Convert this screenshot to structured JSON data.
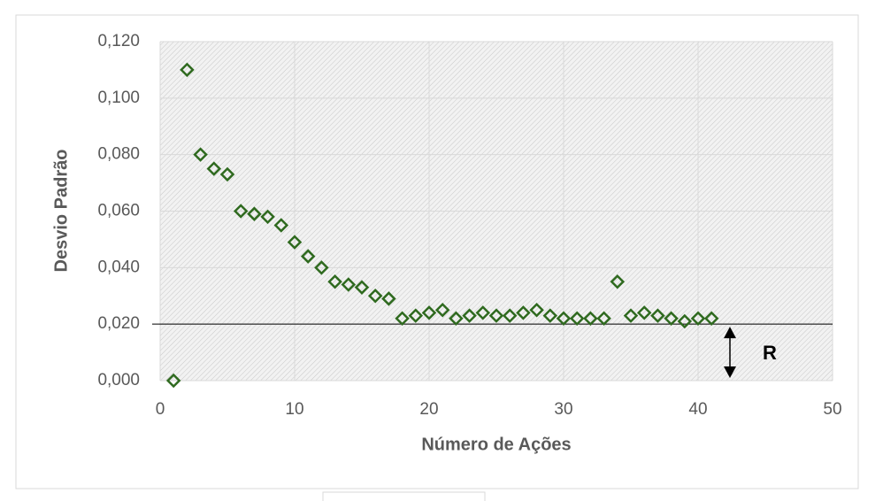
{
  "chart_data": {
    "type": "scatter",
    "x_label": "Número de Ações",
    "y_label": "Desvio Padrão",
    "x": [
      1,
      2,
      3,
      4,
      5,
      6,
      7,
      8,
      9,
      10,
      11,
      12,
      13,
      14,
      15,
      16,
      17,
      18,
      19,
      20,
      21,
      22,
      23,
      24,
      25,
      26,
      27,
      28,
      29,
      30,
      31,
      32,
      33,
      34,
      35,
      36,
      37,
      38,
      39,
      40,
      41
    ],
    "values": [
      0.0,
      0.11,
      0.08,
      0.075,
      0.073,
      0.06,
      0.059,
      0.058,
      0.055,
      0.049,
      0.044,
      0.04,
      0.035,
      0.034,
      0.033,
      0.03,
      0.029,
      0.022,
      0.023,
      0.024,
      0.025,
      0.022,
      0.023,
      0.024,
      0.023,
      0.023,
      0.024,
      0.025,
      0.023,
      0.022,
      0.022,
      0.022,
      0.022,
      0.035,
      0.023,
      0.024,
      0.023,
      0.022,
      0.021,
      0.022,
      0.022
    ],
    "color": "#2f6a1f",
    "xlim": [
      0,
      50
    ],
    "xticks": [
      0,
      10,
      20,
      30,
      40,
      50
    ],
    "ylim": [
      0,
      0.12
    ],
    "yticks": [
      {
        "value": 0,
        "label": "0,000"
      },
      {
        "value": 0.02,
        "label": "0,020"
      },
      {
        "value": 0.04,
        "label": "0,040"
      },
      {
        "value": 0.06,
        "label": "0,060"
      },
      {
        "value": 0.08,
        "label": "0,080"
      },
      {
        "value": 0.1,
        "label": "0,100"
      },
      {
        "value": 0.12,
        "label": "0,120"
      }
    ],
    "grid": true,
    "reference_line": 0.02,
    "annotation": "R"
  }
}
